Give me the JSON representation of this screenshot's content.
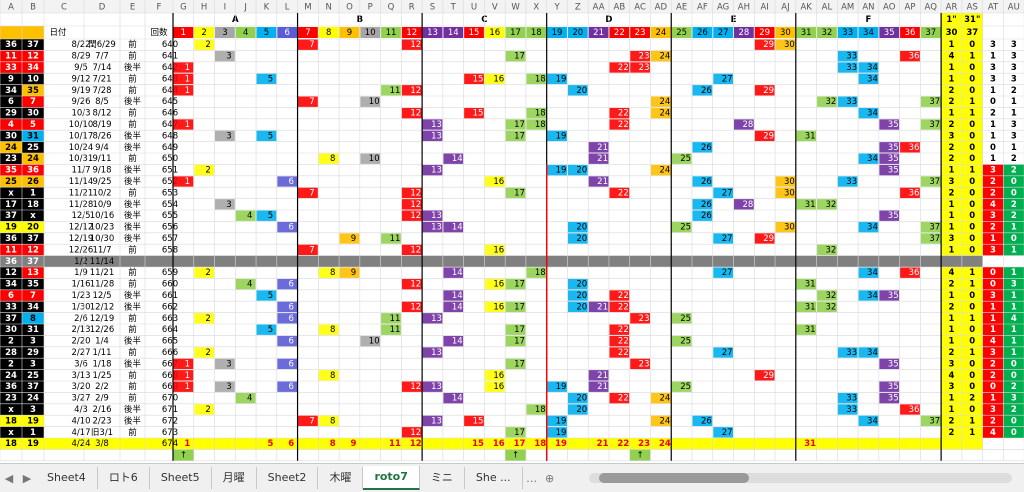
{
  "columns": [
    "A",
    "B",
    "C",
    "D",
    "E",
    "F",
    "G",
    "H",
    "I",
    "J",
    "K",
    "L",
    "M",
    "N",
    "O",
    "P",
    "Q",
    "R",
    "S",
    "T",
    "U",
    "V",
    "W",
    "X",
    "Y",
    "Z",
    "AA",
    "AB",
    "AC",
    "AD",
    "AE",
    "AF",
    "AG",
    "AH",
    "AI",
    "AJ",
    "AK",
    "AL",
    "AM",
    "AN",
    "AO",
    "AP",
    "AQ",
    "AR",
    "AS",
    "AT",
    "AU"
  ],
  "groups": [
    "A",
    "B",
    "C",
    "D",
    "E",
    "F"
  ],
  "header": {
    "date_label": "日付",
    "round_label": "回数",
    "ar_top": "1\"",
    "as_top": "31\"",
    "ar_sub": 30,
    "as_sub": 37,
    "numbers": [
      1,
      2,
      3,
      4,
      5,
      6,
      7,
      8,
      9,
      10,
      11,
      12,
      13,
      14,
      15,
      16,
      17,
      18,
      19,
      20,
      21,
      22,
      23,
      24,
      25,
      26,
      27,
      28,
      29,
      30,
      31,
      32,
      33,
      34,
      35,
      36,
      37
    ],
    "number_colors": [
      "#ff0000",
      "#ffff00",
      "#a6a6a6",
      "#92d050",
      "#00b0f0",
      "#5b5bd6",
      "#ff0000",
      "#ffff00",
      "#ffc000",
      "#a6a6a6",
      "#92d050",
      "#ff0000",
      "#7030a0",
      "#7030a0",
      "#ff0000",
      "#ffff00",
      "#92d050",
      "#92d050",
      "#00b0f0",
      "#00b0f0",
      "#7030a0",
      "#ff0000",
      "#ff0000",
      "#ffc000",
      "#92d050",
      "#00b0f0",
      "#00b0f0",
      "#7030a0",
      "#ff0000",
      "#ffc000",
      "#92d050",
      "#92d050",
      "#00b0f0",
      "#00b0f0",
      "#7030a0",
      "#ff0000",
      "#92d050"
    ]
  },
  "rows": [
    {
      "a": "36",
      "b": "37",
      "ab": "kk",
      "c": "8/22",
      "d": "閏6/29",
      "e": "前",
      "f": "640",
      "n": [
        2,
        7,
        12,
        29,
        30
      ],
      "x": [
        1,
        0,
        3,
        3
      ]
    },
    {
      "a": "11",
      "b": "12",
      "ab": "rr",
      "c": "8/29",
      "d": "7/7",
      "e": "前",
      "f": "641",
      "n": [
        3,
        17,
        23,
        24,
        33,
        36
      ],
      "x": [
        4,
        1,
        1,
        3
      ]
    },
    {
      "a": "33",
      "b": "34",
      "ab": "rr",
      "c": "9/5",
      "d": "7/14",
      "e": "後半",
      "f": "642",
      "n": [
        1,
        22,
        23,
        33,
        34
      ],
      "x": [
        1,
        0,
        3,
        3
      ]
    },
    {
      "a": "9",
      "b": "10",
      "ab": "kk",
      "c": "9/12",
      "d": "7/21",
      "e": "前",
      "f": "643",
      "n": [
        1,
        5,
        15,
        16,
        18,
        19,
        27,
        34
      ],
      "x": [
        1,
        0,
        3,
        3
      ]
    },
    {
      "a": "34",
      "b": "35",
      "ab": "ko",
      "c": "9/19",
      "d": "7/28",
      "e": "前",
      "f": "644",
      "n": [
        1,
        11,
        12,
        20,
        26,
        29
      ],
      "x": [
        2,
        0,
        1,
        2
      ]
    },
    {
      "a": "6",
      "b": "7",
      "ab": "kr",
      "c": "9/26",
      "d": "8/5",
      "e": "後半",
      "f": "645",
      "n": [
        7,
        10,
        24,
        32,
        33,
        37
      ],
      "x": [
        2,
        1,
        0,
        1
      ]
    },
    {
      "a": "29",
      "b": "30",
      "ab": "kk",
      "c": "10/3",
      "d": "8/12",
      "e": "前",
      "f": "646",
      "n": [
        12,
        15,
        18,
        22,
        24,
        34
      ],
      "x": [
        1,
        1,
        2,
        1
      ]
    },
    {
      "a": "4",
      "b": "5",
      "ab": "rr",
      "c": "10/10",
      "d": "8/19",
      "e": "前",
      "f": "647",
      "n": [
        1,
        13,
        17,
        18,
        22,
        28,
        35,
        37
      ],
      "x": [
        2,
        0,
        1,
        3
      ]
    },
    {
      "a": "30",
      "b": "31",
      "ab": "kb",
      "c": "10/17",
      "d": "8/26",
      "e": "後半",
      "f": "648",
      "n": [
        3,
        5,
        13,
        17,
        19,
        29,
        31
      ],
      "x": [
        3,
        0,
        1,
        3
      ]
    },
    {
      "a": "24",
      "b": "25",
      "ab": "ok",
      "c": "10/24",
      "d": "9/4",
      "e": "後半",
      "f": "649",
      "n": [
        21,
        26,
        35,
        36
      ],
      "x": [
        2,
        0,
        0,
        1
      ]
    },
    {
      "a": "23",
      "b": "24",
      "ab": "ko",
      "c": "10/31",
      "d": "9/11",
      "e": "前",
      "f": "650",
      "n": [
        8,
        10,
        14,
        21,
        25,
        34,
        35
      ],
      "x": [
        2,
        0,
        1,
        2
      ]
    },
    {
      "a": "35",
      "b": "36",
      "ab": "rr",
      "c": "11/7",
      "d": "9/18",
      "e": "後半",
      "f": "651",
      "n": [
        2,
        13,
        19,
        20,
        24,
        35
      ],
      "x": [
        1,
        1,
        3,
        2
      ]
    },
    {
      "a": "25",
      "b": "26",
      "ab": "oo",
      "c": "11/14",
      "d": "9/25",
      "e": "後半",
      "f": "652",
      "n": [
        1,
        6,
        16,
        21,
        26,
        30,
        33,
        37
      ],
      "x": [
        3,
        0,
        2,
        0
      ]
    },
    {
      "a": "x",
      "b": "1",
      "ab": "kk",
      "c": "11/21",
      "d": "10/2",
      "e": "前",
      "f": "653",
      "n": [
        7,
        12,
        17,
        22,
        27,
        30,
        36
      ],
      "x": [
        2,
        0,
        2,
        0
      ]
    },
    {
      "a": "17",
      "b": "18",
      "ab": "kk",
      "c": "11/28",
      "d": "10/9",
      "e": "後半",
      "f": "654",
      "n": [
        3,
        12,
        26,
        28,
        31,
        32
      ],
      "x": [
        1,
        0,
        4,
        2
      ]
    },
    {
      "a": "37",
      "b": "x",
      "ab": "kk",
      "c": "12/5",
      "d": "10/16",
      "e": "後半",
      "f": "655",
      "n": [
        4,
        5,
        12,
        13,
        26,
        35
      ],
      "x": [
        1,
        0,
        3,
        2
      ]
    },
    {
      "a": "19",
      "b": "20",
      "ab": "yy",
      "c": "12/12",
      "d": "10/23",
      "e": "後半",
      "f": "656",
      "n": [
        6,
        13,
        14,
        20,
        25,
        30,
        34,
        37
      ],
      "x": [
        1,
        0,
        2,
        1
      ]
    },
    {
      "a": "36",
      "b": "37",
      "ab": "kk",
      "c": "12/19",
      "d": "10/30",
      "e": "後半",
      "f": "657",
      "n": [
        9,
        11,
        20,
        27,
        29,
        37
      ],
      "x": [
        3,
        0,
        1,
        0
      ]
    },
    {
      "a": "11",
      "b": "12",
      "ab": "rr",
      "c": "12/26",
      "d": "11/7",
      "e": "前",
      "f": "658",
      "n": [
        7,
        12,
        16,
        32
      ],
      "x": [
        1,
        0,
        3,
        1
      ]
    },
    {
      "a": "36",
      "b": "37",
      "ab": "ss",
      "c": "1/2",
      "d": "11/14",
      "fill": "#808080"
    },
    {
      "a": "12",
      "b": "13",
      "ab": "kr",
      "c": "1/9",
      "d": "11/21",
      "e": "前",
      "f": "659",
      "n": [
        2,
        8,
        9,
        14,
        18,
        27,
        34,
        36
      ],
      "x": [
        4,
        1,
        0,
        1
      ]
    },
    {
      "a": "34",
      "b": "35",
      "ab": "kk",
      "c": "1/16",
      "d": "11/28",
      "e": "前",
      "f": "660",
      "n": [
        4,
        6,
        12,
        16,
        17,
        20,
        31
      ],
      "x": [
        2,
        1,
        0,
        3
      ]
    },
    {
      "a": "6",
      "b": "7",
      "ab": "rr",
      "c": "1/23",
      "d": "12/5",
      "e": "後半",
      "f": "661",
      "n": [
        5,
        14,
        20,
        22,
        32,
        34,
        35
      ],
      "x": [
        1,
        0,
        3,
        1
      ]
    },
    {
      "a": "33",
      "b": "34",
      "ab": "kk",
      "c": "1/30",
      "d": "12/12",
      "e": "後半",
      "f": "662",
      "n": [
        6,
        12,
        14,
        16,
        17,
        20,
        21,
        22,
        31,
        32
      ],
      "x": [
        2,
        0,
        1,
        1
      ]
    },
    {
      "a": "37",
      "b": "8",
      "ab": "kb",
      "c": "2/6",
      "d": "12/19",
      "e": "前",
      "f": "663",
      "n": [
        2,
        6,
        11,
        13,
        23,
        25
      ],
      "x": [
        1,
        1,
        1,
        4
      ]
    },
    {
      "a": "30",
      "b": "31",
      "ab": "kk",
      "c": "2/13",
      "d": "12/26",
      "e": "前",
      "f": "664",
      "n": [
        5,
        8,
        11,
        17,
        22,
        31
      ],
      "x": [
        1,
        0,
        1,
        1
      ]
    },
    {
      "a": "2",
      "b": "3",
      "ab": "kk",
      "c": "2/20",
      "d": "1/4",
      "e": "後半",
      "f": "665",
      "n": [
        6,
        10,
        14,
        17,
        22,
        25
      ],
      "x": [
        1,
        0,
        4,
        1
      ]
    },
    {
      "a": "28",
      "b": "29",
      "ab": "kk",
      "c": "2/27",
      "d": "1/11",
      "e": "前",
      "f": "666",
      "n": [
        2,
        13,
        22,
        27,
        33,
        34
      ],
      "x": [
        2,
        1,
        3,
        1
      ]
    },
    {
      "a": "2",
      "b": "3",
      "ab": "kk",
      "c": "3/6",
      "d": "1/18",
      "e": "後半",
      "f": "667",
      "n": [
        1,
        3,
        6,
        17,
        23,
        35
      ],
      "x": [
        3,
        0,
        2,
        0
      ]
    },
    {
      "a": "24",
      "b": "25",
      "ab": "kk",
      "c": "3/13",
      "d": "1/25",
      "e": "前",
      "f": "668",
      "n": [
        1,
        8,
        16,
        21,
        29
      ],
      "x": [
        4,
        0,
        2,
        0
      ]
    },
    {
      "a": "36",
      "b": "37",
      "ab": "kk",
      "c": "3/20",
      "d": "2/2",
      "e": "前",
      "f": "669",
      "n": [
        1,
        3,
        6,
        12,
        13,
        16,
        19,
        21,
        25,
        35
      ],
      "x": [
        3,
        0,
        0,
        2
      ]
    },
    {
      "a": "23",
      "b": "24",
      "ab": "kk",
      "c": "3/27",
      "d": "2/9",
      "e": "前",
      "f": "670",
      "n": [
        4,
        14,
        20,
        22,
        24,
        33,
        35
      ],
      "x": [
        1,
        2,
        1,
        3
      ]
    },
    {
      "a": "x",
      "b": "3",
      "ab": "kk",
      "c": "4/3",
      "d": "2/16",
      "e": "後半",
      "f": "671",
      "n": [
        2,
        18,
        20,
        33,
        36
      ],
      "x": [
        1,
        0,
        3,
        2
      ]
    },
    {
      "a": "18",
      "b": "19",
      "ab": "yy",
      "c": "4/10",
      "d": "2/23",
      "e": "後半",
      "f": "672",
      "n": [
        7,
        8,
        13,
        15,
        19,
        24,
        26,
        34,
        37
      ],
      "x": [
        2,
        1,
        2,
        0
      ]
    },
    {
      "a": "x",
      "b": "1",
      "ab": "kk",
      "c": "4/17",
      "d": "旧3/1",
      "e": "前",
      "f": "673",
      "n": [
        12,
        17,
        19,
        27
      ],
      "x": [
        2,
        1,
        4,
        0
      ]
    },
    {
      "a": "18",
      "b": "19",
      "ab": "yy",
      "c": "4/24",
      "d": "3/8",
      "f": "674",
      "n": [
        1,
        5,
        6,
        8,
        9,
        11,
        12,
        15,
        16,
        17,
        18,
        19,
        21,
        22,
        23,
        24,
        31
      ],
      "fill": "#ffff00"
    },
    {
      "arrows": [
        {
          "col": "G",
          "text": "↑"
        },
        {
          "col": "W",
          "text": "↑"
        },
        {
          "col": "AC",
          "text": "↑"
        }
      ]
    }
  ],
  "tabs": [
    "Sheet4",
    "ロト6",
    "Sheet5",
    "月曜",
    "Sheet2",
    "木曜",
    "roto7",
    "ミニ",
    "She ..."
  ],
  "active_tab": "roto7"
}
